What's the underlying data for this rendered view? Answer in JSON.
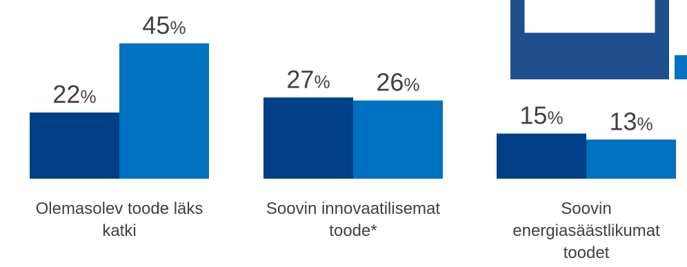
{
  "chart_data": {
    "type": "bar",
    "categories": [
      [
        "Olemasolev toode läks",
        "katki"
      ],
      [
        "Soovin innovaatilisemat",
        "toode*"
      ],
      [
        "Soovin",
        "energiasäästlikumat",
        "toodet"
      ]
    ],
    "series": [
      {
        "values": [
          22,
          27,
          15
        ],
        "labels": [
          "22",
          "27",
          "15"
        ],
        "color": "#003f87"
      },
      {
        "values": [
          45,
          26,
          13
        ],
        "labels": [
          "45",
          "26",
          "13"
        ],
        "color": "#0070c0"
      }
    ],
    "value_suffix": "%",
    "ylim": [
      0,
      50
    ]
  },
  "decor": {
    "icon_color": "#1f4e8c",
    "icon_accent": "#0070c0"
  }
}
